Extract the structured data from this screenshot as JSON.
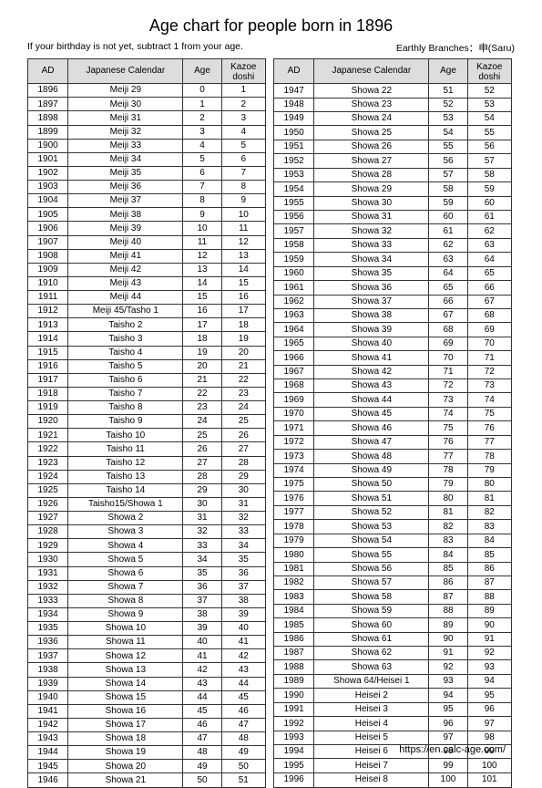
{
  "title": "Age chart for people born in 1896",
  "note": "If your birthday is not yet, subtract 1 from your age.",
  "branches_label": "Earthly Branches：",
  "branches_value": "申(Saru)",
  "footer_url": "https://en.calc-age.com/",
  "columns": {
    "ad": "AD",
    "jp": "Japanese Calendar",
    "age": "Age",
    "kazoe_line1": "Kazoe",
    "kazoe_line2": "doshi"
  },
  "left_rows": [
    [
      "1896",
      "Meiji 29",
      "0",
      "1"
    ],
    [
      "1897",
      "Meiji 30",
      "1",
      "2"
    ],
    [
      "1898",
      "Meiji 31",
      "2",
      "3"
    ],
    [
      "1899",
      "Meiji 32",
      "3",
      "4"
    ],
    [
      "1900",
      "Meiji 33",
      "4",
      "5"
    ],
    [
      "1901",
      "Meiji 34",
      "5",
      "6"
    ],
    [
      "1902",
      "Meiji 35",
      "6",
      "7"
    ],
    [
      "1903",
      "Meiji 36",
      "7",
      "8"
    ],
    [
      "1904",
      "Meiji 37",
      "8",
      "9"
    ],
    [
      "1905",
      "Meiji 38",
      "9",
      "10"
    ],
    [
      "1906",
      "Meiji 39",
      "10",
      "11"
    ],
    [
      "1907",
      "Meiji 40",
      "11",
      "12"
    ],
    [
      "1908",
      "Meiji 41",
      "12",
      "13"
    ],
    [
      "1909",
      "Meiji 42",
      "13",
      "14"
    ],
    [
      "1910",
      "Meiji 43",
      "14",
      "15"
    ],
    [
      "1911",
      "Meiji 44",
      "15",
      "16"
    ],
    [
      "1912",
      "Meiji 45/Tasho 1",
      "16",
      "17"
    ],
    [
      "1913",
      "Taisho 2",
      "17",
      "18"
    ],
    [
      "1914",
      "Taisho 3",
      "18",
      "19"
    ],
    [
      "1915",
      "Taisho 4",
      "19",
      "20"
    ],
    [
      "1916",
      "Taisho 5",
      "20",
      "21"
    ],
    [
      "1917",
      "Taisho 6",
      "21",
      "22"
    ],
    [
      "1918",
      "Taisho 7",
      "22",
      "23"
    ],
    [
      "1919",
      "Taisho 8",
      "23",
      "24"
    ],
    [
      "1920",
      "Taisho 9",
      "24",
      "25"
    ],
    [
      "1921",
      "Taisho 10",
      "25",
      "26"
    ],
    [
      "1922",
      "Taisho 11",
      "26",
      "27"
    ],
    [
      "1923",
      "Taisho 12",
      "27",
      "28"
    ],
    [
      "1924",
      "Taisho 13",
      "28",
      "29"
    ],
    [
      "1925",
      "Taisho 14",
      "29",
      "30"
    ],
    [
      "1926",
      "Taisho15/Showa 1",
      "30",
      "31"
    ],
    [
      "1927",
      "Showa 2",
      "31",
      "32"
    ],
    [
      "1928",
      "Showa 3",
      "32",
      "33"
    ],
    [
      "1929",
      "Showa 4",
      "33",
      "34"
    ],
    [
      "1930",
      "Showa 5",
      "34",
      "35"
    ],
    [
      "1931",
      "Showa 6",
      "35",
      "36"
    ],
    [
      "1932",
      "Showa 7",
      "36",
      "37"
    ],
    [
      "1933",
      "Showa 8",
      "37",
      "38"
    ],
    [
      "1934",
      "Showa 9",
      "38",
      "39"
    ],
    [
      "1935",
      "Showa 10",
      "39",
      "40"
    ],
    [
      "1936",
      "Showa 11",
      "40",
      "41"
    ],
    [
      "1937",
      "Showa 12",
      "41",
      "42"
    ],
    [
      "1938",
      "Showa 13",
      "42",
      "43"
    ],
    [
      "1939",
      "Showa 14",
      "43",
      "44"
    ],
    [
      "1940",
      "Showa 15",
      "44",
      "45"
    ],
    [
      "1941",
      "Showa 16",
      "45",
      "46"
    ],
    [
      "1942",
      "Showa 17",
      "46",
      "47"
    ],
    [
      "1943",
      "Showa 18",
      "47",
      "48"
    ],
    [
      "1944",
      "Showa 19",
      "48",
      "49"
    ],
    [
      "1945",
      "Showa 20",
      "49",
      "50"
    ],
    [
      "1946",
      "Showa 21",
      "50",
      "51"
    ]
  ],
  "right_rows": [
    [
      "1947",
      "Showa 22",
      "51",
      "52"
    ],
    [
      "1948",
      "Showa 23",
      "52",
      "53"
    ],
    [
      "1949",
      "Showa 24",
      "53",
      "54"
    ],
    [
      "1950",
      "Showa 25",
      "54",
      "55"
    ],
    [
      "1951",
      "Showa 26",
      "55",
      "56"
    ],
    [
      "1952",
      "Showa 27",
      "56",
      "57"
    ],
    [
      "1953",
      "Showa 28",
      "57",
      "58"
    ],
    [
      "1954",
      "Showa 29",
      "58",
      "59"
    ],
    [
      "1955",
      "Showa 30",
      "59",
      "60"
    ],
    [
      "1956",
      "Showa 31",
      "60",
      "61"
    ],
    [
      "1957",
      "Showa 32",
      "61",
      "62"
    ],
    [
      "1958",
      "Showa 33",
      "62",
      "63"
    ],
    [
      "1959",
      "Showa 34",
      "63",
      "64"
    ],
    [
      "1960",
      "Showa 35",
      "64",
      "65"
    ],
    [
      "1961",
      "Showa 36",
      "65",
      "66"
    ],
    [
      "1962",
      "Showa 37",
      "66",
      "67"
    ],
    [
      "1963",
      "Showa 38",
      "67",
      "68"
    ],
    [
      "1964",
      "Showa 39",
      "68",
      "69"
    ],
    [
      "1965",
      "Showa 40",
      "69",
      "70"
    ],
    [
      "1966",
      "Showa 41",
      "70",
      "71"
    ],
    [
      "1967",
      "Showa 42",
      "71",
      "72"
    ],
    [
      "1968",
      "Showa 43",
      "72",
      "73"
    ],
    [
      "1969",
      "Showa 44",
      "73",
      "74"
    ],
    [
      "1970",
      "Showa 45",
      "74",
      "75"
    ],
    [
      "1971",
      "Showa 46",
      "75",
      "76"
    ],
    [
      "1972",
      "Showa 47",
      "76",
      "77"
    ],
    [
      "1973",
      "Showa 48",
      "77",
      "78"
    ],
    [
      "1974",
      "Showa 49",
      "78",
      "79"
    ],
    [
      "1975",
      "Showa 50",
      "79",
      "80"
    ],
    [
      "1976",
      "Showa 51",
      "80",
      "81"
    ],
    [
      "1977",
      "Showa 52",
      "81",
      "82"
    ],
    [
      "1978",
      "Showa 53",
      "82",
      "83"
    ],
    [
      "1979",
      "Showa 54",
      "83",
      "84"
    ],
    [
      "1980",
      "Showa 55",
      "84",
      "85"
    ],
    [
      "1981",
      "Showa 56",
      "85",
      "86"
    ],
    [
      "1982",
      "Showa 57",
      "86",
      "87"
    ],
    [
      "1983",
      "Showa 58",
      "87",
      "88"
    ],
    [
      "1984",
      "Showa 59",
      "88",
      "89"
    ],
    [
      "1985",
      "Showa 60",
      "89",
      "90"
    ],
    [
      "1986",
      "Showa 61",
      "90",
      "91"
    ],
    [
      "1987",
      "Showa 62",
      "91",
      "92"
    ],
    [
      "1988",
      "Showa 63",
      "92",
      "93"
    ],
    [
      "1989",
      "Showa 64/Heisei 1",
      "93",
      "94"
    ],
    [
      "1990",
      "Heisei 2",
      "94",
      "95"
    ],
    [
      "1991",
      "Heisei 3",
      "95",
      "96"
    ],
    [
      "1992",
      "Heisei 4",
      "96",
      "97"
    ],
    [
      "1993",
      "Heisei 5",
      "97",
      "98"
    ],
    [
      "1994",
      "Heisei 6",
      "98",
      "99"
    ],
    [
      "1995",
      "Heisei 7",
      "99",
      "100"
    ],
    [
      "1996",
      "Heisei 8",
      "100",
      "101"
    ]
  ]
}
